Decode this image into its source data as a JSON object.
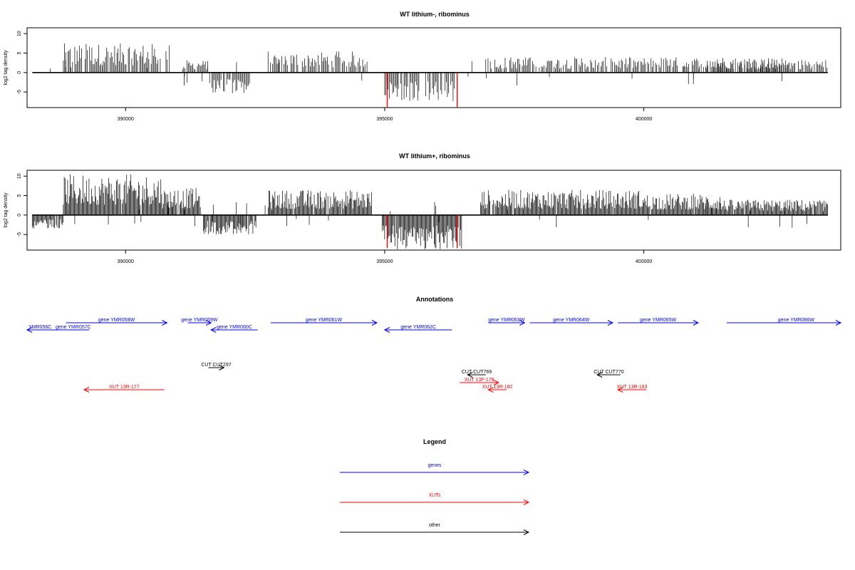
{
  "colors": {
    "gene": "#0000ff",
    "xut": "#ff0000",
    "other": "#000000",
    "mark": "#ff0000"
  },
  "chart_data": [
    {
      "type": "bar",
      "title": "WT lithium-, ribominus",
      "ylabel": "log2 tag density",
      "xlim": [
        388100,
        403800
      ],
      "ylim": [
        -9,
        11.5
      ],
      "yticks": [
        -5,
        0,
        5,
        10
      ],
      "xticks": [
        390000,
        395000,
        400000
      ],
      "grid": false,
      "positive_blocks": [
        {
          "x": [
            388800,
            390850
          ],
          "vmax": 7.5
        },
        {
          "x": [
            391100,
            391600
          ],
          "vmax": 3.2
        },
        {
          "x": [
            392750,
            394700
          ],
          "vmax": 5.5
        },
        {
          "x": [
            396950,
            402800
          ],
          "vmax": 4.0
        },
        {
          "x": [
            401200,
            403550
          ],
          "vmax": 3.5
        }
      ],
      "negative_blocks": [
        {
          "x": [
            391600,
            392450
          ],
          "vmax": 5.5
        },
        {
          "x": [
            395000,
            396350
          ],
          "vmax": 7.5
        }
      ],
      "red_marks": [
        {
          "x": 395050,
          "y": -9
        },
        {
          "x": 396400,
          "y": -9
        }
      ]
    },
    {
      "type": "bar",
      "title": "WT lithium+, ribominus",
      "ylabel": "log2 tag density",
      "xlim": [
        388100,
        403800
      ],
      "ylim": [
        -9,
        11.5
      ],
      "yticks": [
        -5,
        0,
        5,
        10
      ],
      "xticks": [
        390000,
        395000,
        400000
      ],
      "grid": false,
      "positive_blocks": [
        {
          "x": [
            388800,
            390700
          ],
          "vmax": 10.5
        },
        {
          "x": [
            390700,
            391450
          ],
          "vmax": 7.0
        },
        {
          "x": [
            392750,
            394750
          ],
          "vmax": 6.5
        },
        {
          "x": [
            396850,
            400000
          ],
          "vmax": 6.5
        },
        {
          "x": [
            400000,
            401500
          ],
          "vmax": 5.5
        },
        {
          "x": [
            401500,
            403550
          ],
          "vmax": 4.0
        }
      ],
      "negative_blocks": [
        {
          "x": [
            388200,
            388800
          ],
          "vmax": 3.5
        },
        {
          "x": [
            391500,
            392500
          ],
          "vmax": 5.0
        },
        {
          "x": [
            394950,
            396500
          ],
          "vmax": 9.0
        }
      ],
      "red_marks": [
        {
          "x": 395050,
          "y": -8.5
        },
        {
          "x": 396400,
          "y": -8.5
        }
      ]
    }
  ],
  "annotations": {
    "title": "Annotations",
    "features": [
      {
        "label": "YMR056C",
        "label2": "gene YMR057C",
        "type": "gene",
        "x1": 388100,
        "x2": 389300,
        "row": 2,
        "dir": "left"
      },
      {
        "label": "gene YMR058W",
        "type": "gene",
        "x1": 388850,
        "x2": 390800,
        "row": 1,
        "dir": "right"
      },
      {
        "label": "gene YMR059W",
        "type": "gene",
        "x1": 391200,
        "x2": 391650,
        "row": 1,
        "dir": "right"
      },
      {
        "label": "gene YMR060C",
        "type": "gene",
        "x1": 391650,
        "x2": 392550,
        "row": 2,
        "dir": "left"
      },
      {
        "label": "gene YMR061W",
        "type": "gene",
        "x1": 392800,
        "x2": 394850,
        "row": 1,
        "dir": "right"
      },
      {
        "label": "gene YMR062C",
        "type": "gene",
        "x1": 395000,
        "x2": 396300,
        "row": 2,
        "dir": "left"
      },
      {
        "label": "gene YMR063W",
        "type": "gene",
        "x1": 397000,
        "x2": 397700,
        "row": 1,
        "dir": "right"
      },
      {
        "label": "gene YMR064W",
        "type": "gene",
        "x1": 397800,
        "x2": 399400,
        "row": 1,
        "dir": "right"
      },
      {
        "label": "gene YMR065W",
        "type": "gene",
        "x1": 399500,
        "x2": 401050,
        "row": 1,
        "dir": "right"
      },
      {
        "label": "gene YMR066W",
        "type": "gene",
        "x1": 401600,
        "x2": 403800,
        "row": 1,
        "dir": "right"
      },
      {
        "label": "CUT CUT297",
        "type": "other",
        "x1": 391600,
        "x2": 391900,
        "row": 4,
        "dir": "right"
      },
      {
        "label": "CUT CUT769",
        "type": "other",
        "x1": 396600,
        "x2": 396950,
        "row": 5,
        "dir": "left"
      },
      {
        "label": "CUT CUT770",
        "type": "other",
        "x1": 399100,
        "x2": 399550,
        "row": 5,
        "dir": "left"
      },
      {
        "label": "XUT 13F-178",
        "type": "xut",
        "x1": 396450,
        "x2": 397200,
        "row": 6,
        "dir": "right"
      },
      {
        "label": "XUT 13R-177",
        "type": "xut",
        "x1": 389200,
        "x2": 390750,
        "row": 7,
        "dir": "left"
      },
      {
        "label": "XUT 13R-182",
        "type": "xut",
        "x1": 397000,
        "x2": 397350,
        "row": 7,
        "dir": "left"
      },
      {
        "label": "XUT 13R-183",
        "type": "xut",
        "x1": 399500,
        "x2": 400050,
        "row": 7,
        "dir": "left"
      }
    ]
  },
  "legend": {
    "title": "Legend",
    "items": [
      {
        "label": "genes",
        "type": "gene"
      },
      {
        "label": "XUTs",
        "type": "xut"
      },
      {
        "label": "other",
        "type": "other"
      }
    ]
  }
}
